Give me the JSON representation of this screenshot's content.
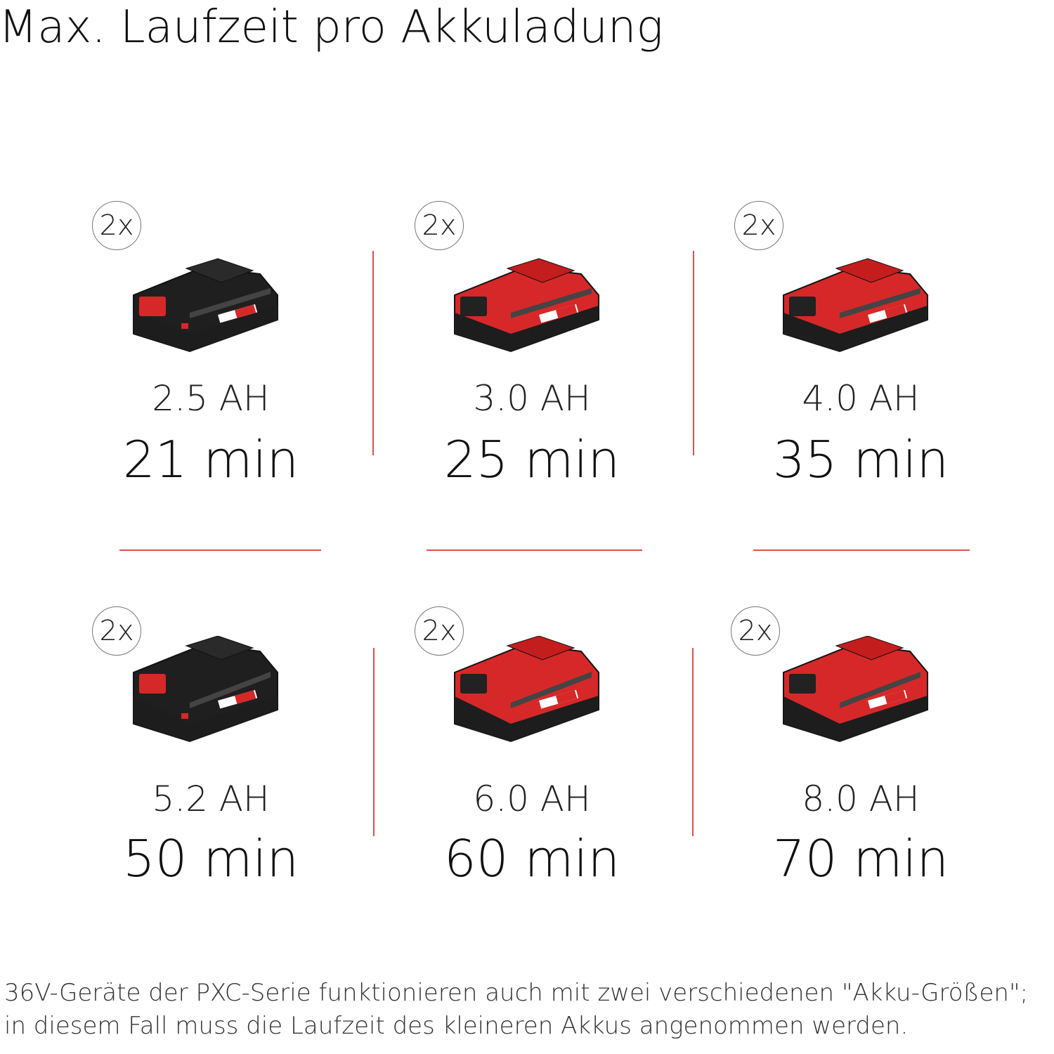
{
  "title": "Max. Laufzeit pro Akkuladung",
  "colors": {
    "accent": "#d62828",
    "divider": "#d9534f",
    "battery_dark": "#1f1f1f"
  },
  "batteries": [
    {
      "count": "2x",
      "capacity": "2.5 AH",
      "runtime": "21 min",
      "body": "black",
      "icon": "battery-2-5ah-icon"
    },
    {
      "count": "2x",
      "capacity": "3.0 AH",
      "runtime": "25 min",
      "body": "red",
      "icon": "battery-3-0ah-icon"
    },
    {
      "count": "2x",
      "capacity": "4.0 AH",
      "runtime": "35 min",
      "body": "red",
      "icon": "battery-4-0ah-icon"
    },
    {
      "count": "2x",
      "capacity": "5.2 AH",
      "runtime": "50 min",
      "body": "black",
      "icon": "battery-5-2ah-icon"
    },
    {
      "count": "2x",
      "capacity": "6.0 AH",
      "runtime": "60 min",
      "body": "red",
      "icon": "battery-6-0ah-icon"
    },
    {
      "count": "2x",
      "capacity": "8.0 AH",
      "runtime": "70 min",
      "body": "red",
      "icon": "battery-8-0ah-icon"
    }
  ],
  "footnote": {
    "line1": "36V-Geräte der PXC-Serie funktionieren auch mit zwei verschiedenen \"Akku-Größen\";",
    "line2": "in diesem Fall muss die Laufzeit des kleineren Akkus angenommen werden."
  }
}
